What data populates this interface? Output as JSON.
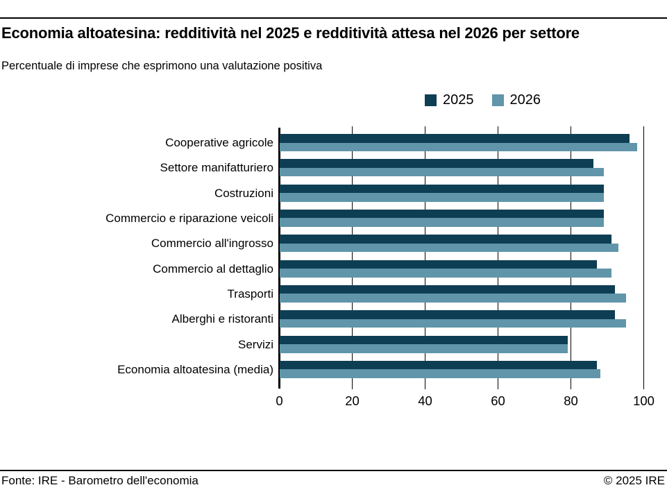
{
  "header": {
    "title": "Economia altoatesina: redditività nel 2025 e redditività attesa nel 2026 per settore",
    "subtitle": "Percentuale di imprese che esprimono una valutazione positiva"
  },
  "colors": {
    "series_2025": "#0e3e53",
    "series_2026": "#6095aa",
    "axis": "#000000"
  },
  "chart_data": {
    "type": "bar",
    "orientation": "horizontal",
    "title": "Economia altoatesina: redditività nel 2025 e redditività attesa nel 2026 per settore",
    "subtitle": "Percentuale di imprese che esprimono una valutazione positiva",
    "categories": [
      "Cooperative agricole",
      "Settore manifatturiero",
      "Costruzioni",
      "Commercio e riparazione veicoli",
      "Commercio all'ingrosso",
      "Commercio al dettaglio",
      "Trasporti",
      "Alberghi e ristoranti",
      "Servizi",
      "Economia altoatesina (media)"
    ],
    "series": [
      {
        "name": "2025",
        "color": "#0e3e53",
        "values": [
          96,
          86,
          89,
          89,
          91,
          87,
          92,
          92,
          79,
          87
        ]
      },
      {
        "name": "2026",
        "color": "#6095aa",
        "values": [
          98,
          89,
          89,
          89,
          93,
          91,
          95,
          95,
          79,
          88
        ]
      }
    ],
    "xlabel": "",
    "ylabel": "",
    "xlim": [
      0,
      100
    ],
    "xticks": [
      0,
      20,
      40,
      60,
      80,
      100
    ],
    "grid": true,
    "legend_position": "top-right"
  },
  "legend": [
    {
      "label": "2025",
      "color": "#0e3e53"
    },
    {
      "label": "2026",
      "color": "#6095aa"
    }
  ],
  "footer": {
    "source": "Fonte: IRE - Barometro dell'economia",
    "copyright": "© 2025 IRE"
  }
}
